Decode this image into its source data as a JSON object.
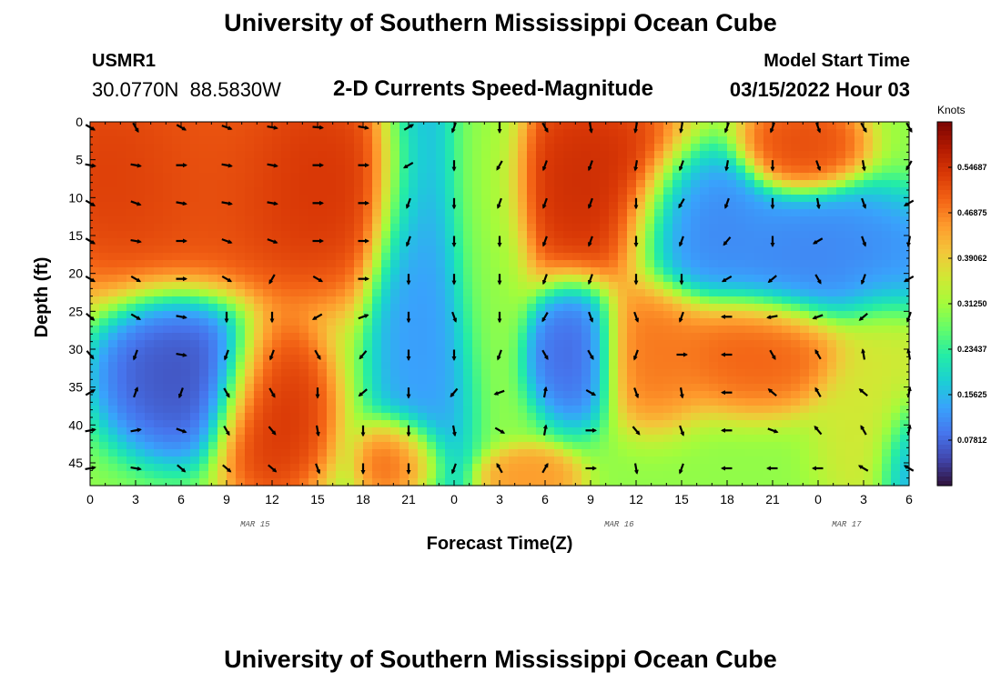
{
  "page": {
    "title": "University of Southern Mississippi Ocean Cube",
    "station": "USMR1",
    "coords": "30.0770N  88.5830W",
    "model_label": "Model Start Time",
    "model_time": "03/15/2022 Hour 03",
    "bottom_title": "University of Southern Mississippi Ocean Cube"
  },
  "chart_data": {
    "type": "heatmap",
    "title": "2-D Currents Speed-Magnitude",
    "xlabel": "Forecast Time(Z)",
    "ylabel": "Depth (ft)",
    "x_tick_labels": [
      "0",
      "3",
      "6",
      "9",
      "12",
      "15",
      "18",
      "21",
      "0",
      "3",
      "6",
      "9",
      "12",
      "15",
      "18",
      "21",
      "0",
      "3",
      "6"
    ],
    "x_range_hours": [
      0,
      54
    ],
    "date_labels": [
      {
        "text": "MAR 15",
        "hour": 11
      },
      {
        "text": "MAR 16",
        "hour": 35
      },
      {
        "text": "MAR 17",
        "hour": 50
      }
    ],
    "y_ticks": [
      0,
      5,
      10,
      15,
      20,
      25,
      30,
      35,
      40,
      45
    ],
    "y_range": [
      0,
      48
    ],
    "colorbar": {
      "title": "Knots",
      "labels": [
        "0.07812",
        "0.15625",
        "0.23437",
        "0.31250",
        "0.39062",
        "0.46875",
        "0.54687"
      ],
      "range": [
        0,
        0.625
      ],
      "colors": [
        "#30123b",
        "#4145ab",
        "#4675ed",
        "#39a2fc",
        "#1bcfd4",
        "#24eca6",
        "#61fc6c",
        "#a4fc3b",
        "#d1e834",
        "#f3c63a",
        "#fe9b2d",
        "#f36315",
        "#d93806",
        "#b11901",
        "#7a0403"
      ]
    },
    "speed_hotspots": [
      {
        "hour": 3,
        "depth": 7,
        "speed": 0.54,
        "sx": 6,
        "sy": 10
      },
      {
        "hour": 8,
        "depth": 5,
        "speed": 0.5,
        "sx": 4,
        "sy": 10
      },
      {
        "hour": 14,
        "depth": 8,
        "speed": 0.55,
        "sx": 5,
        "sy": 10
      },
      {
        "hour": 6,
        "depth": 33,
        "speed": 0.05,
        "sx": 3.5,
        "sy": 7
      },
      {
        "hour": 12,
        "depth": 38,
        "speed": 0.55,
        "sx": 2.5,
        "sy": 8
      },
      {
        "hour": 20.5,
        "depth": 45,
        "speed": 0.52,
        "sx": 1.7,
        "sy": 4
      },
      {
        "hour": 22,
        "depth": 20,
        "speed": 0.12,
        "sx": 2.2,
        "sy": 22
      },
      {
        "hour": 26,
        "depth": 10,
        "speed": 0.3,
        "sx": 2,
        "sy": 15
      },
      {
        "hour": 33,
        "depth": 8,
        "speed": 0.56,
        "sx": 4,
        "sy": 9
      },
      {
        "hour": 29,
        "depth": 47,
        "speed": 0.45,
        "sx": 2,
        "sy": 2.5
      },
      {
        "hour": 32,
        "depth": 30,
        "speed": 0.07,
        "sx": 2,
        "sy": 6
      },
      {
        "hour": 37,
        "depth": 30,
        "speed": 0.48,
        "sx": 2.5,
        "sy": 6
      },
      {
        "hour": 40,
        "depth": 13,
        "speed": 0.1,
        "sx": 3,
        "sy": 6
      },
      {
        "hour": 44,
        "depth": 30,
        "speed": 0.5,
        "sx": 4,
        "sy": 5
      },
      {
        "hour": 47,
        "depth": 3,
        "speed": 0.52,
        "sx": 2.5,
        "sy": 4
      },
      {
        "hour": 48,
        "depth": 18,
        "speed": 0.1,
        "sx": 6,
        "sy": 6
      },
      {
        "hour": 52,
        "depth": 38,
        "speed": 0.36,
        "sx": 2.5,
        "sy": 10
      },
      {
        "hour": 54,
        "depth": 45,
        "speed": 0.1,
        "sx": 1.5,
        "sy": 6
      }
    ],
    "arrow_hours": [
      0,
      3,
      6,
      9,
      12,
      15,
      18,
      21,
      24,
      27,
      30,
      33,
      36,
      39,
      42,
      45,
      48,
      51,
      54
    ],
    "arrow_depths": [
      0,
      5,
      10,
      15,
      20,
      25,
      30,
      35,
      40,
      45
    ],
    "arrow_directions_deg": [
      [
        120,
        150,
        120,
        110,
        100,
        95,
        100,
        60,
        200,
        180,
        150,
        170,
        190,
        190,
        200,
        200,
        160,
        150,
        150
      ],
      [
        100,
        100,
        90,
        100,
        100,
        90,
        90,
        240,
        180,
        210,
        200,
        200,
        190,
        200,
        190,
        180,
        160,
        170,
        210
      ],
      [
        120,
        110,
        100,
        100,
        100,
        90,
        90,
        200,
        180,
        200,
        200,
        200,
        180,
        210,
        200,
        180,
        170,
        160,
        240
      ],
      [
        120,
        100,
        90,
        110,
        110,
        90,
        90,
        200,
        180,
        180,
        200,
        200,
        180,
        200,
        220,
        180,
        240,
        160,
        190
      ],
      [
        120,
        120,
        90,
        120,
        210,
        120,
        90,
        180,
        180,
        180,
        200,
        200,
        180,
        180,
        240,
        230,
        150,
        200,
        240
      ],
      [
        130,
        120,
        100,
        180,
        180,
        240,
        70,
        180,
        160,
        180,
        210,
        160,
        160,
        200,
        270,
        260,
        250,
        230,
        200
      ],
      [
        140,
        200,
        100,
        200,
        200,
        150,
        220,
        180,
        180,
        200,
        150,
        150,
        200,
        90,
        270,
        150,
        330,
        350,
        350
      ],
      [
        60,
        20,
        200,
        150,
        150,
        180,
        230,
        180,
        220,
        250,
        10,
        120,
        160,
        170,
        270,
        310,
        330,
        310,
        10
      ],
      [
        80,
        80,
        110,
        150,
        140,
        170,
        180,
        180,
        170,
        120,
        10,
        90,
        140,
        160,
        270,
        110,
        320,
        330,
        10
      ],
      [
        80,
        100,
        130,
        130,
        130,
        160,
        180,
        180,
        200,
        330,
        30,
        90,
        170,
        200,
        270,
        270,
        270,
        300,
        300
      ]
    ]
  }
}
